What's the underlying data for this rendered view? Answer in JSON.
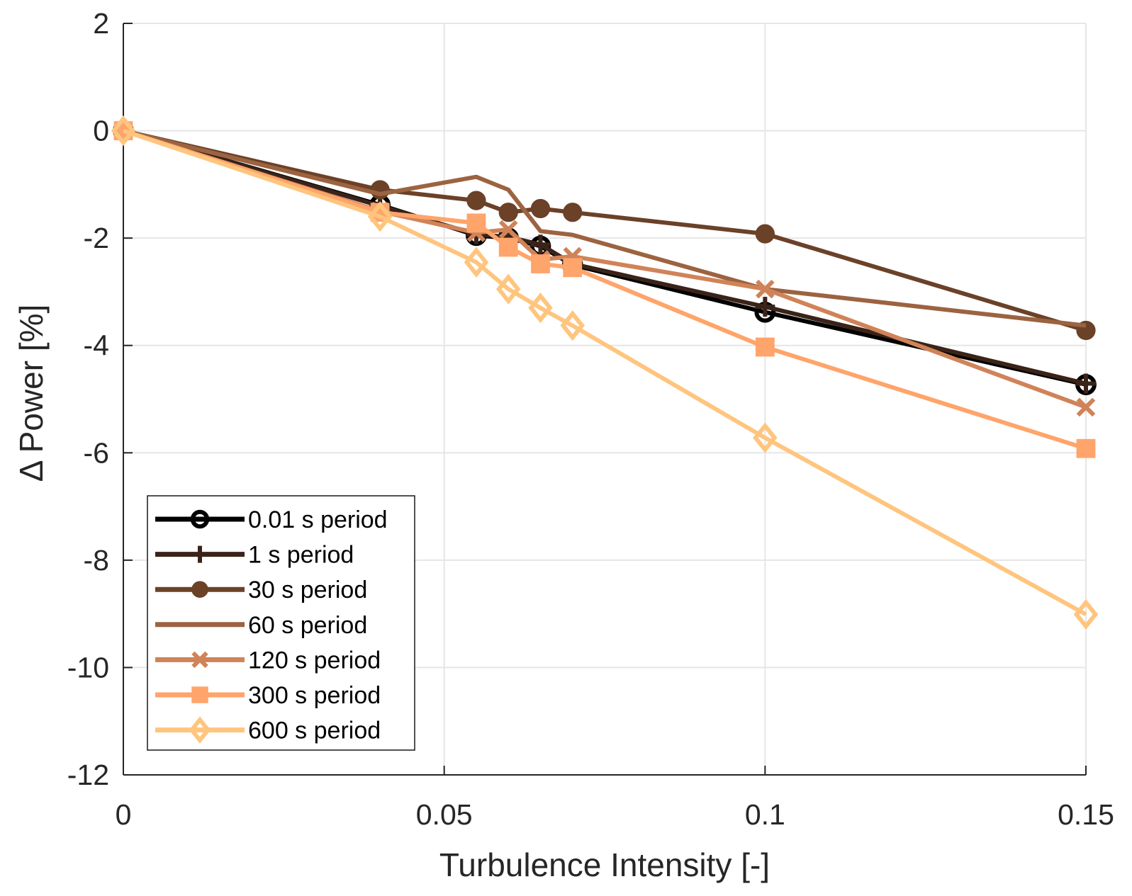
{
  "chart_data": {
    "type": "line",
    "title": "",
    "xlabel": "Turbulence Intensity [-]",
    "ylabel": "Δ Power [%]",
    "xlim": [
      0,
      0.15
    ],
    "ylim": [
      -12,
      2
    ],
    "xticks": [
      0,
      0.05,
      0.1,
      0.15
    ],
    "xtick_labels": [
      "0",
      "0.05",
      "0.1",
      "0.15"
    ],
    "yticks": [
      2,
      0,
      -2,
      -4,
      -6,
      -8,
      -10,
      -12
    ],
    "ytick_labels": [
      "2",
      "0",
      "-2",
      "-4",
      "-6",
      "-8",
      "-10",
      "-12"
    ],
    "grid": true,
    "legend_position": "bottom-left",
    "x": [
      0,
      0.04,
      0.055,
      0.06,
      0.065,
      0.07,
      0.1,
      0.15
    ],
    "series": [
      {
        "name": "0.01 s period",
        "color": "#000000",
        "marker": "circle-open",
        "values": [
          0,
          -1.38,
          -1.95,
          -2.0,
          -2.15,
          -2.5,
          -3.38,
          -4.73
        ]
      },
      {
        "name": "1 s period",
        "color": "#3a2318",
        "marker": "plus",
        "values": [
          0,
          -1.4,
          -1.93,
          -1.98,
          -2.12,
          -2.48,
          -3.28,
          -4.71
        ]
      },
      {
        "name": "30 s period",
        "color": "#6b4128",
        "marker": "filled-circle",
        "values": [
          0,
          -1.1,
          -1.3,
          -1.52,
          -1.45,
          -1.52,
          -1.92,
          -3.72
        ]
      },
      {
        "name": "60 s period",
        "color": "#9c6340",
        "marker": "none",
        "values": [
          0,
          -1.18,
          -0.86,
          -1.1,
          -1.87,
          -1.94,
          -2.95,
          -3.63
        ]
      },
      {
        "name": "120 s period",
        "color": "#d08358",
        "marker": "x",
        "values": [
          0,
          -1.5,
          -1.9,
          -1.84,
          -2.4,
          -2.34,
          -2.95,
          -5.15
        ]
      },
      {
        "name": "300 s period",
        "color": "#ffa46a",
        "marker": "square",
        "values": [
          0,
          -1.52,
          -1.72,
          -2.17,
          -2.48,
          -2.55,
          -4.03,
          -5.92
        ]
      },
      {
        "name": "600 s period",
        "color": "#ffc57e",
        "marker": "diamond-open",
        "values": [
          0,
          -1.6,
          -2.45,
          -2.95,
          -3.3,
          -3.63,
          -5.72,
          -9.01
        ]
      }
    ]
  }
}
